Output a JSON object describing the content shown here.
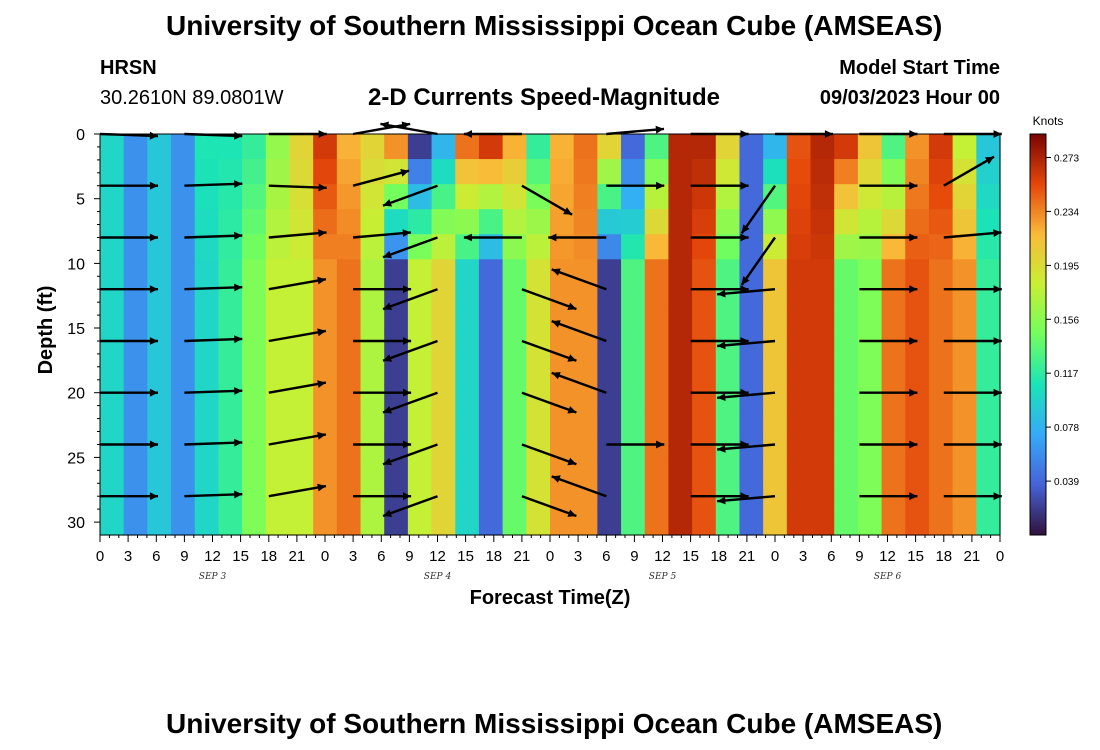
{
  "header": {
    "title": "University of Southern Mississippi Ocean Cube (AMSEAS)",
    "station": "HRSN",
    "coords": "30.2610N  89.0801W",
    "plot_title": "2-D Currents Speed-Magnitude",
    "model_start_label": "Model Start Time",
    "model_start_value": "09/03/2023 Hour 00"
  },
  "footer": {
    "title": "University of Southern Mississippi Ocean Cube (AMSEAS)"
  },
  "chart_data": {
    "type": "heatmap",
    "title": "2-D Currents Speed-Magnitude",
    "xlabel": "Forecast Time(Z)",
    "ylabel": "Depth (ft)",
    "x_tick_labels": [
      "0",
      "3",
      "6",
      "9",
      "12",
      "15",
      "18",
      "21",
      "0",
      "3",
      "6",
      "9",
      "12",
      "15",
      "18",
      "21",
      "0",
      "3",
      "6",
      "9",
      "12",
      "15",
      "18",
      "21",
      "0",
      "3",
      "6",
      "9",
      "12",
      "15",
      "18",
      "21",
      "0"
    ],
    "x_range_hours": [
      0,
      96
    ],
    "day_labels": [
      {
        "text": "SEP 3",
        "hour": 12
      },
      {
        "text": "SEP 4",
        "hour": 36
      },
      {
        "text": "SEP 5",
        "hour": 60
      },
      {
        "text": "SEP 6",
        "hour": 84
      }
    ],
    "y_ticks": [
      0,
      5,
      10,
      15,
      20,
      25,
      30
    ],
    "y_range_ft": [
      0,
      31
    ],
    "colorbar": {
      "unit": "Knots",
      "tick_labels": [
        "0.273",
        "0.234",
        "0.195",
        "0.156",
        "0.117",
        "0.078",
        "0.039"
      ],
      "range": [
        0,
        0.29
      ]
    },
    "surface_speed_knots": [
      0.1,
      0.06,
      0.09,
      0.06,
      0.11,
      0.11,
      0.12,
      0.16,
      0.2,
      0.26,
      0.22,
      0.2,
      0.23,
      0.02,
      0.08,
      0.24,
      0.26,
      0.22,
      0.12,
      0.22,
      0.24,
      0.2,
      0.04,
      0.13,
      0.27,
      0.27,
      0.2,
      0.04,
      0.08,
      0.25,
      0.27,
      0.26,
      0.21,
      0.13,
      0.23,
      0.26,
      0.18,
      0.09
    ],
    "deep_speed_knots": [
      0.1,
      0.06,
      0.09,
      0.06,
      0.1,
      0.12,
      0.15,
      0.18,
      0.18,
      0.23,
      0.24,
      0.17,
      0.02,
      0.18,
      0.2,
      0.1,
      0.04,
      0.14,
      0.19,
      0.23,
      0.23,
      0.02,
      0.13,
      0.24,
      0.27,
      0.25,
      0.13,
      0.04,
      0.21,
      0.26,
      0.26,
      0.14,
      0.15,
      0.24,
      0.25,
      0.24,
      0.23,
      0.12
    ],
    "vector_depths_ft": [
      0,
      4,
      8,
      12,
      16,
      20,
      24,
      28
    ],
    "vector_hours": [
      0,
      9,
      18,
      27,
      36,
      45,
      54,
      63,
      72,
      81,
      90
    ],
    "vector_angles_deg": [
      [
        -2,
        -2,
        0,
        10,
        170,
        180,
        5,
        0,
        0,
        0,
        0
      ],
      [
        0,
        2,
        -2,
        15,
        200,
        -30,
        0,
        0,
        235,
        0,
        30
      ],
      [
        0,
        2,
        5,
        5,
        200,
        180,
        180,
        0,
        235,
        0,
        5
      ],
      [
        0,
        2,
        10,
        0,
        200,
        -20,
        160,
        0,
        185,
        0,
        0
      ],
      [
        0,
        2,
        10,
        0,
        200,
        -20,
        160,
        0,
        185,
        0,
        0
      ],
      [
        0,
        2,
        10,
        0,
        200,
        -20,
        160,
        0,
        185,
        0,
        0
      ],
      [
        0,
        2,
        10,
        0,
        200,
        -20,
        0,
        0,
        185,
        0,
        0
      ],
      [
        0,
        2,
        10,
        0,
        200,
        -20,
        160,
        0,
        185,
        0,
        0
      ]
    ]
  }
}
